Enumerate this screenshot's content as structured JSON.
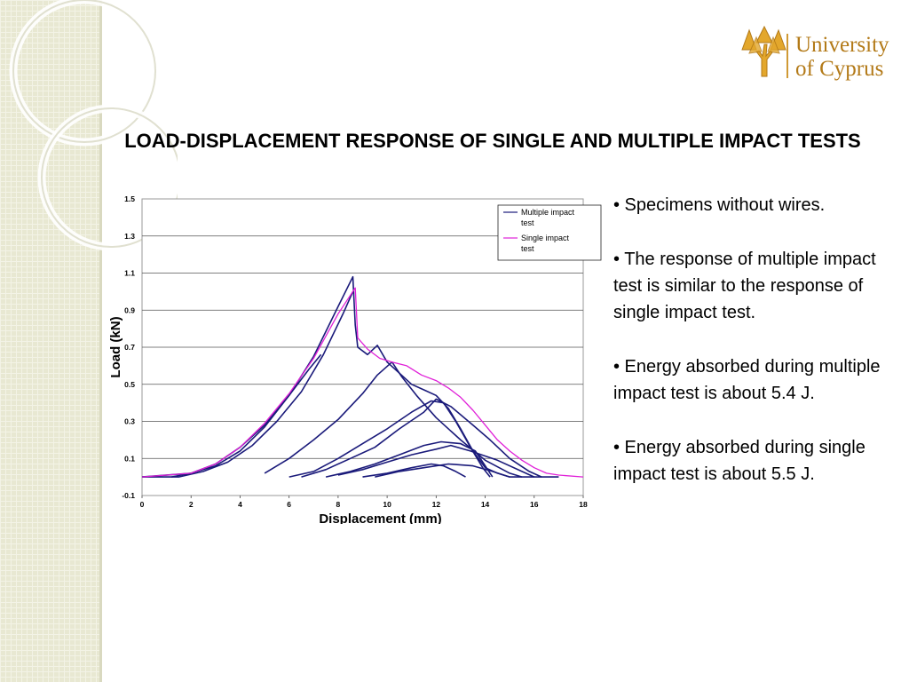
{
  "slide": {
    "title": "LOAD-DISPLACEMENT RESPONSE OF SINGLE AND MULTIPLE IMPACT TESTS",
    "logo": {
      "line1": "University",
      "line2": "of Cyprus"
    },
    "bullets": [
      "• Specimens without wires.",
      "• The response of multiple impact test is similar to the response of single impact test.",
      "• Energy absorbed during multiple impact test is about 5.4 J.",
      "• Energy absorbed during single impact test is about 5.5 J."
    ],
    "colors": {
      "title": "#000000",
      "logo": "#b37a18",
      "band": "#e8e8d2"
    }
  },
  "chart_data": {
    "type": "line",
    "title": "",
    "xlabel": "Displacement (mm)",
    "ylabel": "Load (kN)",
    "xlim": [
      0,
      18
    ],
    "ylim": [
      -0.1,
      1.5
    ],
    "xticks": [
      0,
      2,
      4,
      6,
      8,
      10,
      12,
      14,
      16,
      18
    ],
    "yticks": [
      -0.1,
      0.1,
      0.3,
      0.5,
      0.7,
      0.9,
      1.1,
      1.3,
      1.5
    ],
    "grid": true,
    "legend": "top-right",
    "series": [
      {
        "name": "Multiple impact test",
        "color": "#1a1a7a",
        "segments": [
          [
            [
              0,
              0.0
            ],
            [
              2,
              0.02
            ],
            [
              3,
              0.06
            ],
            [
              4,
              0.14
            ],
            [
              5,
              0.27
            ],
            [
              6,
              0.44
            ],
            [
              7,
              0.65
            ],
            [
              8,
              0.92
            ],
            [
              8.6,
              1.08
            ],
            [
              8.7,
              0.82
            ],
            [
              8.8,
              0.7
            ],
            [
              9.2,
              0.66
            ],
            [
              9.6,
              0.71
            ],
            [
              10,
              0.62
            ],
            [
              10.5,
              0.56
            ],
            [
              11,
              0.5
            ],
            [
              11.5,
              0.47
            ],
            [
              12,
              0.44
            ],
            [
              12.5,
              0.37
            ],
            [
              13,
              0.26
            ],
            [
              13.5,
              0.14
            ],
            [
              14,
              0.05
            ],
            [
              14.5,
              0.02
            ],
            [
              15,
              0.0
            ],
            [
              16,
              0.0
            ],
            [
              17,
              0.0
            ]
          ],
          [
            [
              8.6,
              1.0
            ],
            [
              8.2,
              0.88
            ],
            [
              7.4,
              0.66
            ],
            [
              6.5,
              0.46
            ],
            [
              5.5,
              0.3
            ],
            [
              4.5,
              0.17
            ],
            [
              3.5,
              0.08
            ],
            [
              2.5,
              0.03
            ],
            [
              1.5,
              0.0
            ],
            [
              0.5,
              0.0
            ],
            [
              0,
              0.0
            ]
          ],
          [
            [
              1.2,
              0.0
            ],
            [
              2,
              0.02
            ],
            [
              3,
              0.07
            ],
            [
              4,
              0.16
            ],
            [
              5,
              0.28
            ],
            [
              6,
              0.44
            ],
            [
              6.8,
              0.58
            ],
            [
              7.3,
              0.66
            ]
          ],
          [
            [
              5,
              0.02
            ],
            [
              6,
              0.1
            ],
            [
              7,
              0.2
            ],
            [
              8,
              0.31
            ],
            [
              9,
              0.45
            ],
            [
              9.6,
              0.55
            ],
            [
              10.2,
              0.62
            ],
            [
              10.6,
              0.54
            ],
            [
              11.2,
              0.44
            ],
            [
              12,
              0.32
            ],
            [
              13,
              0.2
            ],
            [
              14,
              0.09
            ],
            [
              15,
              0.02
            ],
            [
              15.5,
              0.0
            ]
          ],
          [
            [
              6,
              0.0
            ],
            [
              7,
              0.03
            ],
            [
              8,
              0.1
            ],
            [
              9,
              0.18
            ],
            [
              10,
              0.26
            ],
            [
              11,
              0.35
            ],
            [
              11.8,
              0.41
            ],
            [
              12.3,
              0.4
            ],
            [
              12.8,
              0.3
            ],
            [
              13.4,
              0.16
            ],
            [
              13.9,
              0.05
            ],
            [
              14.2,
              0.0
            ]
          ],
          [
            [
              6.5,
              0.0
            ],
            [
              7.5,
              0.04
            ],
            [
              8.5,
              0.1
            ],
            [
              9.5,
              0.16
            ],
            [
              10.5,
              0.26
            ],
            [
              11.5,
              0.35
            ],
            [
              12,
              0.42
            ],
            [
              12.6,
              0.38
            ],
            [
              13.5,
              0.28
            ],
            [
              14.2,
              0.2
            ],
            [
              15,
              0.1
            ],
            [
              15.8,
              0.03
            ],
            [
              16.3,
              0.0
            ]
          ],
          [
            [
              7.5,
              0.0
            ],
            [
              8.5,
              0.03
            ],
            [
              9.5,
              0.07
            ],
            [
              10.5,
              0.12
            ],
            [
              11.5,
              0.17
            ],
            [
              12.2,
              0.19
            ],
            [
              13,
              0.18
            ],
            [
              13.6,
              0.14
            ],
            [
              14,
              0.06
            ],
            [
              14.3,
              0.0
            ]
          ],
          [
            [
              8,
              0.01
            ],
            [
              9,
              0.04
            ],
            [
              10,
              0.08
            ],
            [
              11,
              0.12
            ],
            [
              12,
              0.15
            ],
            [
              12.6,
              0.17
            ],
            [
              13.4,
              0.14
            ],
            [
              14.5,
              0.09
            ],
            [
              15.5,
              0.03
            ],
            [
              16,
              0.0
            ]
          ],
          [
            [
              9,
              0.0
            ],
            [
              10,
              0.02
            ],
            [
              11,
              0.05
            ],
            [
              11.8,
              0.07
            ],
            [
              12.3,
              0.06
            ],
            [
              12.8,
              0.03
            ],
            [
              13.2,
              0.0
            ]
          ],
          [
            [
              9.5,
              0.0
            ],
            [
              10.5,
              0.03
            ],
            [
              11.5,
              0.05
            ],
            [
              12.5,
              0.07
            ],
            [
              13.5,
              0.06
            ],
            [
              14.3,
              0.03
            ],
            [
              15,
              0.0
            ]
          ]
        ]
      },
      {
        "name": "Single impact test",
        "color": "#e020d8",
        "segments": [
          [
            [
              0,
              0.0
            ],
            [
              2,
              0.02
            ],
            [
              3,
              0.07
            ],
            [
              4,
              0.16
            ],
            [
              5,
              0.29
            ],
            [
              6,
              0.45
            ],
            [
              7,
              0.64
            ],
            [
              8,
              0.88
            ],
            [
              8.7,
              1.02
            ],
            [
              8.8,
              0.75
            ],
            [
              9.2,
              0.69
            ],
            [
              9.7,
              0.64
            ],
            [
              10.2,
              0.62
            ],
            [
              10.8,
              0.6
            ],
            [
              11.4,
              0.55
            ],
            [
              12,
              0.52
            ],
            [
              12.5,
              0.48
            ],
            [
              13,
              0.43
            ],
            [
              13.5,
              0.36
            ],
            [
              14,
              0.28
            ],
            [
              14.5,
              0.2
            ],
            [
              15,
              0.14
            ],
            [
              15.5,
              0.09
            ],
            [
              16,
              0.05
            ],
            [
              16.5,
              0.02
            ],
            [
              17,
              0.01
            ],
            [
              18,
              0.0
            ]
          ]
        ]
      }
    ]
  }
}
